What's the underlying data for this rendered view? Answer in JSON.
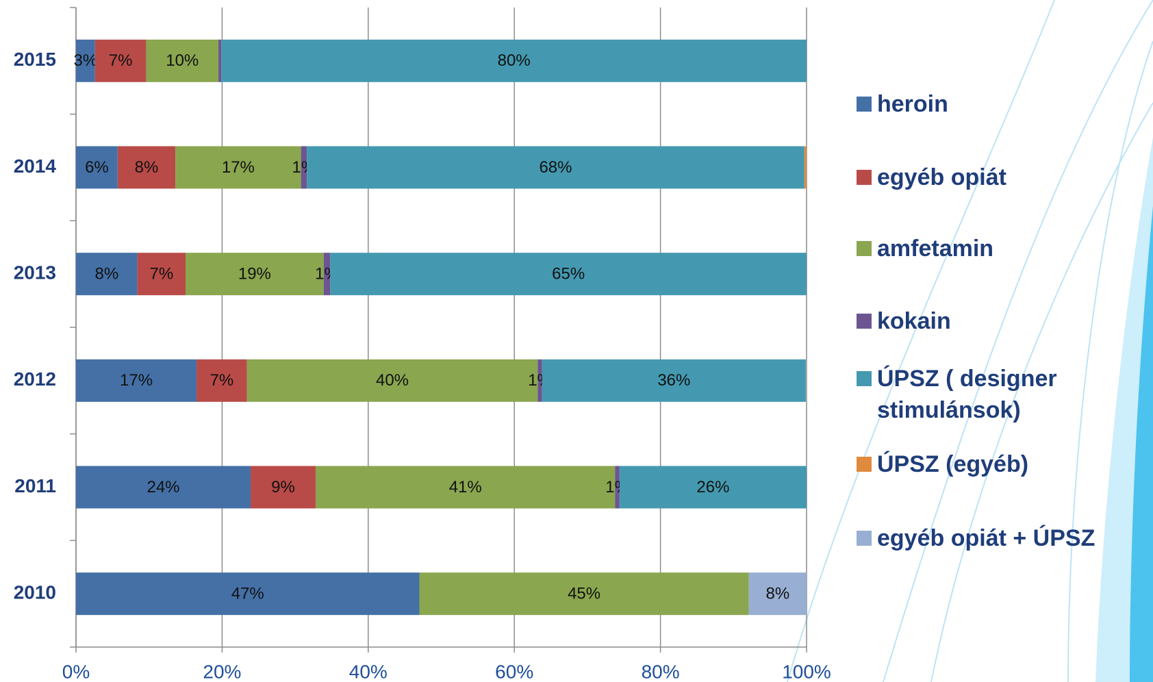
{
  "chart_data": {
    "type": "stacked_barh",
    "categories": [
      "2010",
      "2011",
      "2012",
      "2013",
      "2014",
      "2015"
    ],
    "series": [
      {
        "name": "heroin",
        "color": "#4470a6",
        "values": [
          47.0,
          23.9,
          16.5,
          8.4,
          5.7,
          2.6
        ],
        "value_labels": [
          "47%",
          "24%",
          "17%",
          "8%",
          "6%",
          "3%"
        ]
      },
      {
        "name": "egyéb opiát",
        "color": "#b84b48",
        "values": [
          null,
          8.9,
          6.9,
          6.6,
          7.9,
          7.0
        ],
        "value_labels": [
          null,
          "9%",
          "7%",
          "7%",
          "8%",
          "7%"
        ]
      },
      {
        "name": "amfetamin",
        "color": "#8aa64f",
        "values": [
          45.1,
          41.0,
          39.8,
          18.9,
          17.2,
          9.9
        ],
        "value_labels": [
          "45%",
          "41%",
          "40%",
          "19%",
          "17%",
          "10%"
        ]
      },
      {
        "name": "kokain",
        "color": "#6d5592",
        "values": [
          null,
          0.6,
          0.6,
          0.9,
          0.8,
          0.4
        ],
        "value_labels": [
          null,
          "1%",
          "1%",
          "1%",
          "1%",
          null
        ]
      },
      {
        "name": "ÚPSZ ( designer stimulánsok)",
        "color": "#4499b0",
        "values": [
          null,
          25.6,
          36.1,
          65.2,
          68.1,
          80.1
        ],
        "value_labels": [
          null,
          "26%",
          "36%",
          "65%",
          "68%",
          "80%"
        ]
      },
      {
        "name": "ÚPSZ (egyéb)",
        "color": "#e08a3e",
        "values": [
          null,
          null,
          null,
          null,
          0.3,
          null
        ]
      },
      {
        "name": "egyéb opiát + ÚPSZ",
        "color": "#98aed3",
        "values": [
          7.9,
          null,
          null,
          null,
          null,
          null
        ],
        "value_labels": [
          "8%",
          null,
          null,
          null,
          null,
          null
        ]
      }
    ],
    "xlim": [
      0,
      100
    ],
    "xticks": [
      {
        "value": 0,
        "label": "0%"
      },
      {
        "value": 20,
        "label": "20%"
      },
      {
        "value": 40,
        "label": "40%"
      },
      {
        "value": 60,
        "label": "60%"
      },
      {
        "value": 80,
        "label": "80%"
      },
      {
        "value": 100,
        "label": "100%"
      }
    ],
    "grid": true
  }
}
